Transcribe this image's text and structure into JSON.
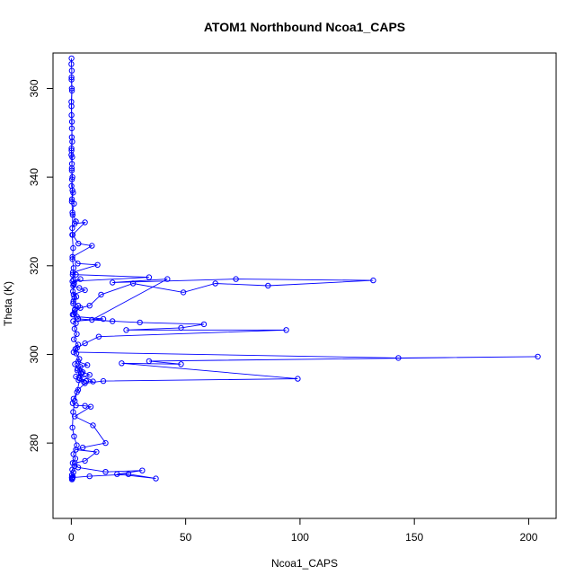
{
  "chart_data": {
    "type": "scatter",
    "title": "ATOM1 Northbound Ncoa1_CAPS",
    "xlabel": "Ncoa1_CAPS",
    "ylabel": "Theta (K)",
    "xlim": [
      -8,
      212
    ],
    "ylim": [
      263,
      368
    ],
    "x_ticks": [
      0,
      50,
      100,
      150,
      200
    ],
    "y_ticks": [
      280,
      300,
      320,
      340,
      360
    ],
    "grid": false,
    "legend": "none",
    "color": "#0000ff",
    "marker": "open-circle",
    "line": true,
    "series": [
      {
        "x": [
          0.1,
          0.0,
          0.2,
          0.1,
          0.3,
          0.0,
          0.1,
          0.2,
          0.4,
          0.1,
          0.0,
          0.3,
          0.2,
          0.5,
          0.1,
          0.8,
          0.3,
          1.2,
          0.5,
          2.0,
          0.4,
          1.5,
          6.0,
          0.6,
          3.1,
          9.0,
          0.5,
          2.8,
          11.5,
          0.7,
          2.0,
          34.0,
          0.5,
          4.0,
          1.2,
          0.8,
          3.5,
          6.0,
          1.0,
          2.2,
          0.9,
          3.0,
          1.5,
          0.6,
          2.5,
          14.0,
          0.8,
          9.0,
          42.0,
          18.0,
          72.0,
          132.0,
          86.0,
          63.0,
          49.0,
          27.0,
          13.0,
          8.0,
          4.0,
          1.5,
          3.0,
          18.0,
          30.0,
          58.0,
          48.0,
          24.0,
          94.0,
          12.0,
          6.0,
          2.5,
          1.0,
          143.0,
          204.0,
          34.0,
          48.0,
          22.0,
          99.0,
          14.0,
          6.0,
          3.0,
          1.0,
          0.6,
          2.0,
          6.0,
          8.5,
          1.5,
          9.5,
          15.0,
          5.0,
          2.0,
          11.0,
          6.0,
          1.5,
          3.0,
          15.0,
          31.0,
          20.0,
          37.0,
          25.0,
          8.0,
          0.5
        ],
        "y": [
          366.8,
          365.5,
          364.0,
          362.0,
          359.5,
          357.0,
          354.0,
          351.0,
          348.0,
          346.5,
          345.0,
          343.0,
          341.5,
          340.0,
          338.0,
          336.5,
          335.0,
          334.0,
          332.0,
          330.0,
          328.5,
          329.5,
          329.8,
          327.0,
          325.0,
          324.5,
          322.0,
          320.5,
          320.2,
          318.5,
          318.0,
          317.4,
          316.5,
          317.0,
          316.0,
          315.5,
          315.0,
          314.5,
          313.5,
          313.0,
          312.0,
          311.0,
          310.0,
          309.0,
          308.5,
          308.0,
          307.5,
          307.8,
          317.0,
          316.2,
          317.0,
          316.7,
          315.5,
          316.0,
          314.0,
          316.0,
          313.5,
          311.0,
          310.5,
          309.5,
          308.0,
          307.5,
          307.2,
          306.8,
          306.0,
          305.5,
          305.5,
          304.0,
          302.5,
          301.5,
          300.5,
          299.2,
          299.5,
          298.5,
          297.8,
          298.0,
          294.5,
          294.0,
          293.5,
          292.0,
          290.0,
          289.0,
          288.5,
          288.4,
          288.2,
          286.0,
          284.0,
          280.0,
          279.0,
          278.5,
          278.0,
          276.0,
          275.5,
          274.5,
          273.5,
          273.8,
          273.0,
          272.0,
          273.0,
          272.5,
          272.2
        ]
      },
      {
        "x": [
          0.1,
          0.2,
          0.1,
          0.3,
          0.2,
          0.1,
          0.4,
          0.2,
          0.3,
          0.5,
          0.2,
          0.6,
          0.4,
          0.8,
          0.5,
          1.0,
          0.6,
          0.9,
          1.1,
          0.7,
          1.3,
          0.8,
          1.6,
          1.0,
          2.0,
          1.4,
          2.4,
          1.1,
          3.0,
          1.8,
          2.2,
          3.5,
          1.6,
          2.8,
          4.5,
          2.0,
          3.2,
          5.5,
          2.6,
          4.0,
          7.0,
          3.0,
          5.0,
          8.0,
          3.6,
          6.5,
          9.5,
          4.2,
          2.5,
          1.5,
          0.8,
          0.5,
          1.2,
          2.4,
          0.9,
          1.8,
          0.6,
          1.4,
          0.4,
          0.9,
          0.3,
          0.7,
          0.2,
          0.5,
          0.3
        ],
        "y": [
          362.5,
          360.0,
          356.0,
          352.5,
          349.0,
          346.0,
          344.5,
          342.0,
          339.5,
          337.0,
          334.5,
          331.5,
          327.0,
          324.0,
          321.5,
          319.5,
          318.0,
          316.8,
          315.8,
          314.2,
          312.8,
          311.5,
          310.2,
          309.0,
          307.0,
          305.8,
          304.6,
          303.4,
          302.2,
          301.2,
          300.2,
          299.0,
          297.8,
          296.8,
          295.8,
          295.0,
          294.2,
          293.8,
          296.4,
          297.2,
          297.6,
          298.4,
          296.0,
          295.4,
          294.6,
          294.0,
          293.9,
          295.6,
          291.5,
          289.5,
          287.0,
          283.5,
          281.5,
          279.5,
          277.5,
          276.5,
          275.5,
          274.8,
          274.0,
          273.4,
          272.8,
          272.4,
          272.2,
          272.0,
          271.8
        ]
      }
    ]
  }
}
